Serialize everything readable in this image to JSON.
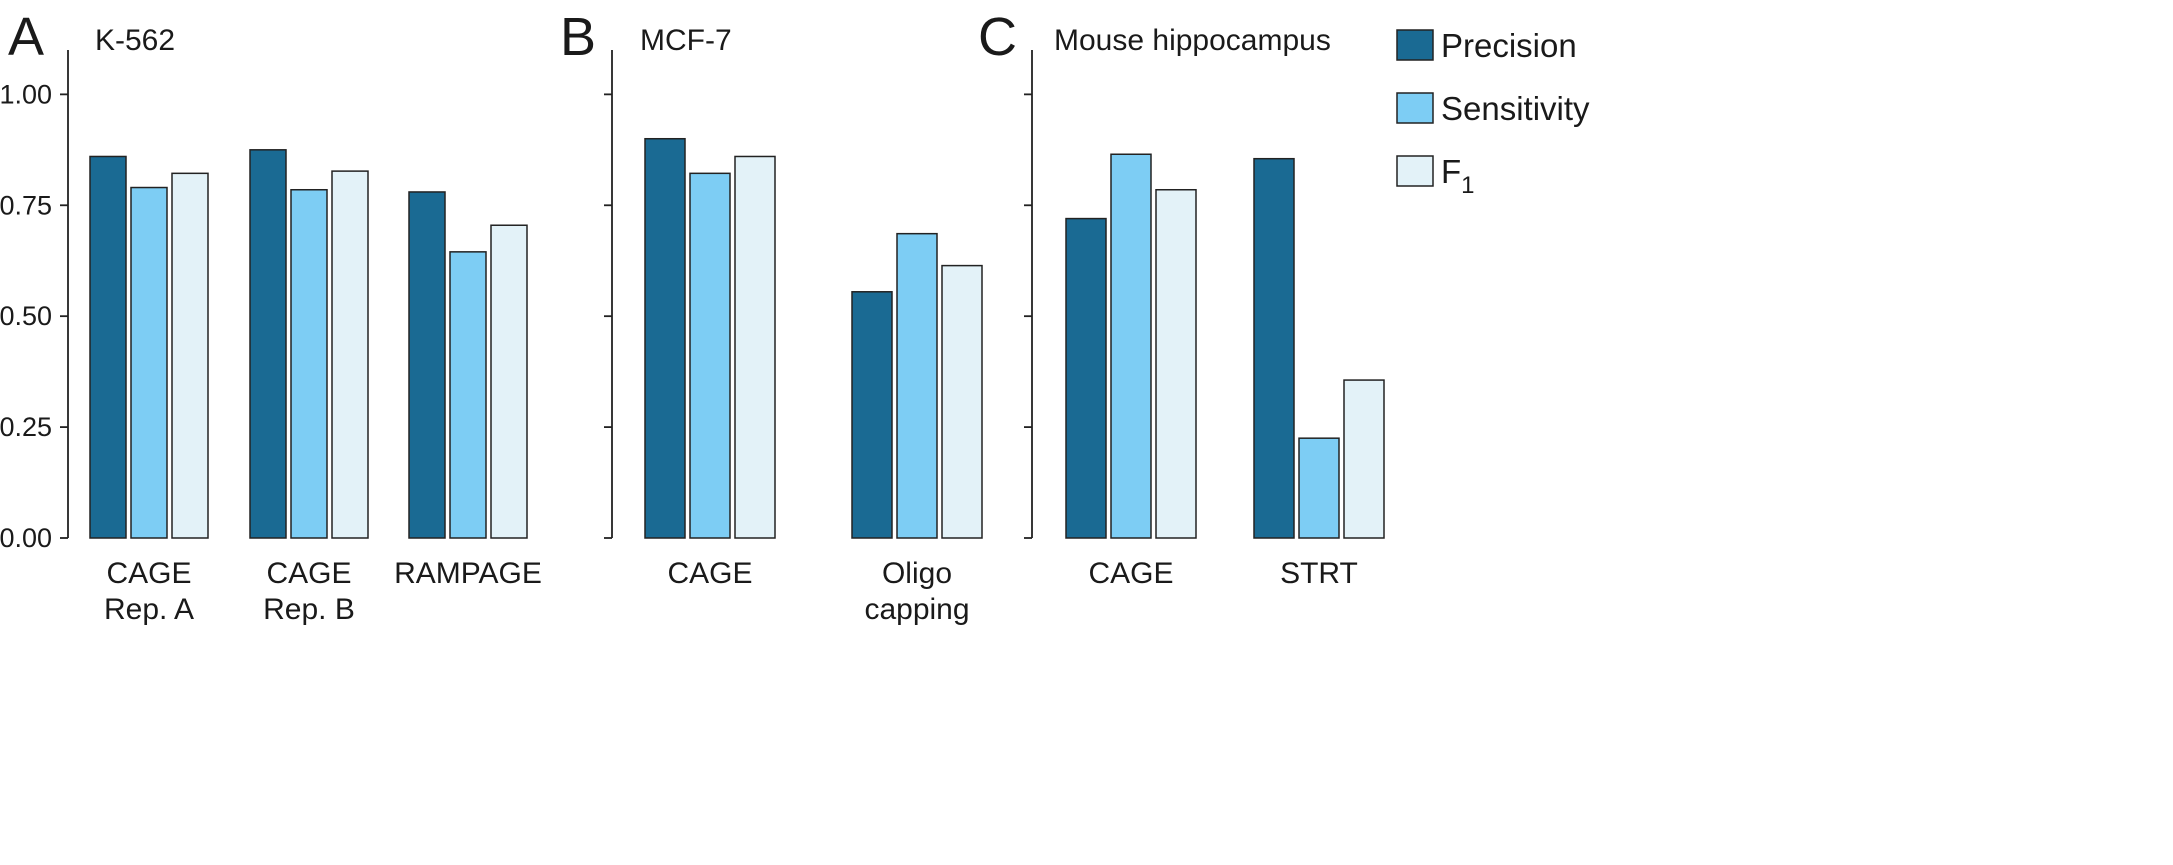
{
  "colors": {
    "precision": "#1a6a93",
    "sensitivity": "#7dcdf4",
    "f1": "#e3f2f8",
    "stroke": "#222222"
  },
  "legend": {
    "items": [
      {
        "key": "precision",
        "label": "Precision"
      },
      {
        "key": "sensitivity",
        "label": "Sensitivity"
      },
      {
        "key": "f1",
        "label": "F",
        "subscript": "1"
      }
    ]
  },
  "chart_data": [
    {
      "type": "bar",
      "panel": "A",
      "title": "K-562",
      "ylim": [
        0,
        1.1
      ],
      "yticks": [
        "0.00",
        "0.25",
        "0.50",
        "0.75",
        "1.00"
      ],
      "categories": [
        [
          "CAGE",
          "Rep. A"
        ],
        [
          "CAGE",
          "Rep. B"
        ],
        [
          "RAMPAGE"
        ]
      ],
      "series": [
        {
          "name": "Precision",
          "key": "precision",
          "values": [
            0.86,
            0.875,
            0.78
          ]
        },
        {
          "name": "Sensitivity",
          "key": "sensitivity",
          "values": [
            0.79,
            0.785,
            0.645
          ]
        },
        {
          "name": "F1",
          "key": "f1",
          "values": [
            0.822,
            0.827,
            0.705
          ]
        }
      ]
    },
    {
      "type": "bar",
      "panel": "B",
      "title": "MCF-7",
      "ylim": [
        0,
        1.1
      ],
      "yticks": [],
      "categories": [
        [
          "CAGE"
        ],
        [
          "Oligo",
          "capping"
        ]
      ],
      "series": [
        {
          "name": "Precision",
          "key": "precision",
          "values": [
            0.9,
            0.555
          ]
        },
        {
          "name": "Sensitivity",
          "key": "sensitivity",
          "values": [
            0.822,
            0.686
          ]
        },
        {
          "name": "F1",
          "key": "f1",
          "values": [
            0.86,
            0.614
          ]
        }
      ]
    },
    {
      "type": "bar",
      "panel": "C",
      "title": "Mouse hippocampus",
      "ylim": [
        0,
        1.1
      ],
      "yticks": [],
      "categories": [
        [
          "CAGE"
        ],
        [
          "STRT"
        ]
      ],
      "series": [
        {
          "name": "Precision",
          "key": "precision",
          "values": [
            0.72,
            0.855
          ]
        },
        {
          "name": "Sensitivity",
          "key": "sensitivity",
          "values": [
            0.865,
            0.225
          ]
        },
        {
          "name": "F1",
          "key": "f1",
          "values": [
            0.785,
            0.356
          ]
        }
      ]
    }
  ]
}
